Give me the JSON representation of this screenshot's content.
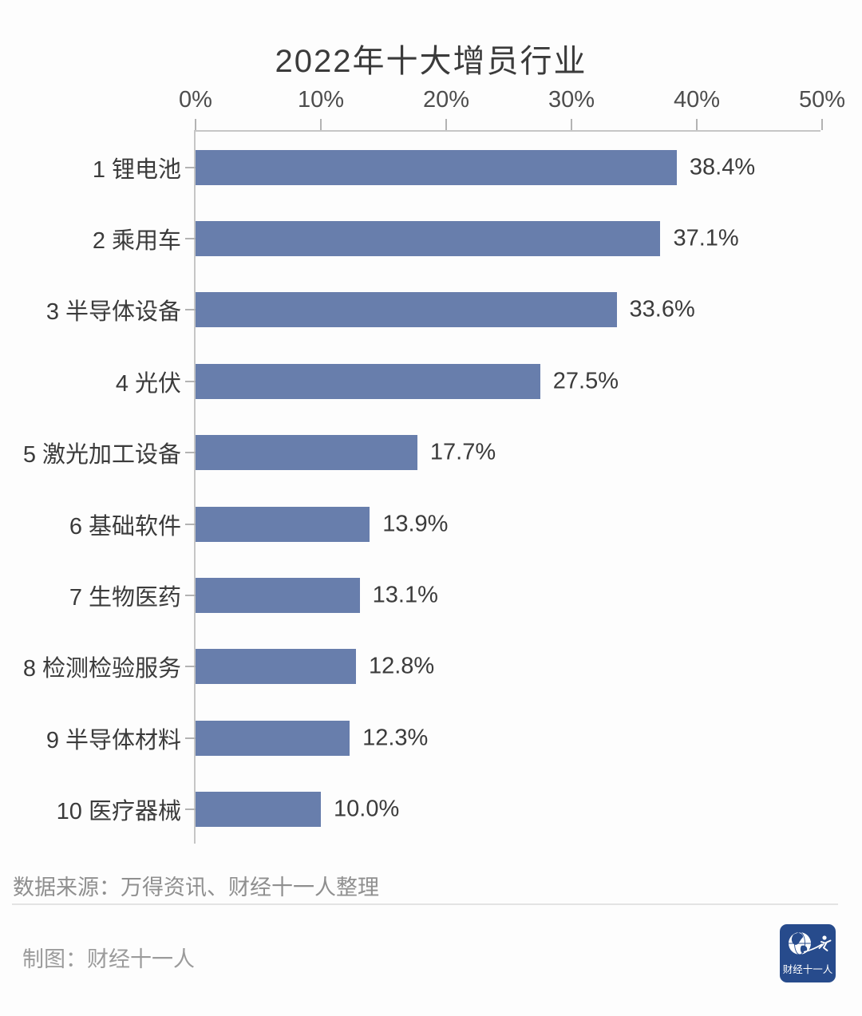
{
  "title": "2022年十大增员行业",
  "chart_data": {
    "type": "bar",
    "orientation": "horizontal",
    "title": "2022年十大增员行业",
    "categories": [
      "1 锂电池",
      "2 乘用车",
      "3 半导体设备",
      "4 光伏",
      "5 激光加工设备",
      "6 基础软件",
      "7 生物医药",
      "8 检测检验服务",
      "9 半导体材料",
      "10 医疗器械"
    ],
    "values": [
      38.4,
      37.1,
      33.6,
      27.5,
      17.7,
      13.9,
      13.1,
      12.8,
      12.3,
      10.0
    ],
    "value_labels": [
      "38.4%",
      "37.1%",
      "33.6%",
      "27.5%",
      "17.7%",
      "13.9%",
      "13.1%",
      "12.8%",
      "12.3%",
      "10.0%"
    ],
    "x_tick_labels": [
      "0%",
      "10%",
      "20%",
      "30%",
      "40%",
      "50%"
    ],
    "x_tick_values": [
      0,
      10,
      20,
      30,
      40,
      50
    ],
    "xlim": [
      0,
      50
    ],
    "xlabel": "",
    "ylabel": "",
    "grid": false,
    "legend": false,
    "bar_color": "#687EAC",
    "axis_line_color": "#c6c6c6",
    "tick_color": "#b3b3b3"
  },
  "footer": {
    "source": "数据来源：万得资讯、财经十一人整理",
    "credit": "制图：财经十一人",
    "logo_text": "财经十一人",
    "logo_bg": "#274B8C"
  }
}
